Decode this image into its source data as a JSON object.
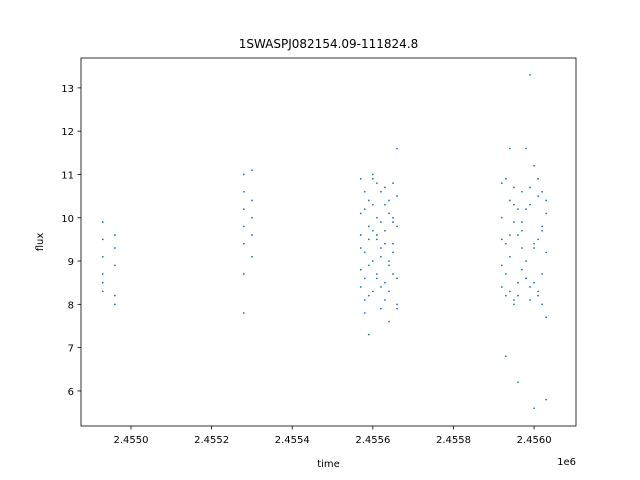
{
  "chart_data": {
    "type": "scatter",
    "title": "1SWASPJ082154.09-111824.8",
    "x_label": "time",
    "y_label": "flux",
    "x_offset_label": "1e6",
    "color": "#1f77b4",
    "xlim": [
      2.454876,
      2.456104
    ],
    "ylim": [
      5.19,
      13.69
    ],
    "xticks": [
      {
        "value": 2.455,
        "label": "2.4550"
      },
      {
        "value": 2.4552,
        "label": "2.4552"
      },
      {
        "value": 2.4554,
        "label": "2.4554"
      },
      {
        "value": 2.4556,
        "label": "2.4556"
      },
      {
        "value": 2.4558,
        "label": "2.4558"
      },
      {
        "value": 2.456,
        "label": "2.4560"
      }
    ],
    "yticks": [
      6,
      7,
      8,
      9,
      10,
      11,
      12,
      13
    ],
    "x": [
      2.45493,
      2.45493,
      2.45493,
      2.45493,
      2.45493,
      2.45493,
      2.45496,
      2.45496,
      2.45496,
      2.45496,
      2.45496,
      2.45528,
      2.45528,
      2.45528,
      2.45528,
      2.45528,
      2.45528,
      2.45528,
      2.4553,
      2.4553,
      2.4553,
      2.4553,
      2.4553,
      2.45557,
      2.45558,
      2.45559,
      2.4556,
      2.45561,
      2.45562,
      2.45563,
      2.45564,
      2.45565,
      2.45566,
      2.45557,
      2.45558,
      2.45559,
      2.4556,
      2.45561,
      2.45562,
      2.45563,
      2.45564,
      2.45565,
      2.45566,
      2.45557,
      2.45558,
      2.45559,
      2.4556,
      2.45561,
      2.45562,
      2.45563,
      2.45564,
      2.45565,
      2.45566,
      2.45557,
      2.45558,
      2.45559,
      2.4556,
      2.45561,
      2.45562,
      2.45563,
      2.45564,
      2.45565,
      2.45566,
      2.45557,
      2.45558,
      2.45559,
      2.4556,
      2.45561,
      2.45562,
      2.45563,
      2.45564,
      2.45565,
      2.45566,
      2.45557,
      2.45558,
      2.45559,
      2.4556,
      2.45561,
      2.45562,
      2.45563,
      2.45564,
      2.45565,
      2.45566,
      2.45592,
      2.45593,
      2.45594,
      2.45595,
      2.45596,
      2.45597,
      2.45598,
      2.45599,
      2.456,
      2.45601,
      2.45602,
      2.45603,
      2.45592,
      2.45593,
      2.45594,
      2.45595,
      2.45596,
      2.45597,
      2.45598,
      2.45599,
      2.456,
      2.45601,
      2.45602,
      2.45603,
      2.45592,
      2.45593,
      2.45594,
      2.45595,
      2.45596,
      2.45597,
      2.45598,
      2.45599,
      2.456,
      2.45601,
      2.45602,
      2.45603,
      2.45592,
      2.45593,
      2.45594,
      2.45595,
      2.45596,
      2.45597,
      2.45598,
      2.45599,
      2.456,
      2.45601,
      2.45602,
      2.45603,
      2.45592,
      2.45593,
      2.45594,
      2.45595,
      2.45596,
      2.45597,
      2.45598,
      2.45599,
      2.456,
      2.45601,
      2.45602,
      2.45603
    ],
    "values": [
      9.9,
      9.5,
      9.1,
      8.7,
      8.5,
      8.3,
      9.6,
      9.3,
      8.9,
      8.2,
      8.0,
      11.0,
      10.6,
      10.2,
      9.8,
      9.4,
      8.7,
      7.8,
      11.1,
      10.4,
      10.0,
      9.6,
      9.1,
      10.9,
      8.1,
      9.5,
      10.3,
      8.6,
      9.9,
      10.7,
      8.3,
      9.2,
      10.5,
      8.4,
      10.2,
      8.9,
      9.7,
      10.8,
      7.9,
      9.4,
      10.1,
      8.7,
      9.8,
      9.6,
      10.6,
      8.2,
      9.0,
      10.0,
      9.3,
      8.5,
      10.4,
      9.9,
      8.0,
      8.8,
      9.2,
      10.4,
      8.3,
      9.6,
      10.6,
      8.1,
      9.0,
      10.8,
      8.6,
      10.1,
      7.8,
      9.8,
      10.9,
      8.7,
      9.1,
      10.3,
      8.9,
      9.4,
      7.9,
      9.3,
      8.6,
      7.3,
      11.0,
      9.5,
      8.4,
      9.7,
      7.6,
      10.0,
      11.6,
      10.8,
      8.2,
      9.6,
      10.3,
      8.5,
      9.9,
      11.6,
      8.1,
      9.4,
      10.5,
      8.7,
      10.1,
      8.4,
      10.9,
      9.1,
      8.0,
      10.2,
      9.7,
      8.6,
      10.7,
      9.3,
      8.3,
      9.8,
      10.4,
      9.5,
      8.7,
      11.6,
      9.9,
      8.2,
      10.6,
      9.0,
      10.3,
      8.5,
      10.9,
      8.0,
      9.2,
      10.0,
      9.4,
      8.3,
      10.7,
      9.6,
      8.8,
      10.2,
      8.4,
      11.2,
      9.5,
      10.6,
      7.7,
      8.9,
      6.8,
      10.4,
      8.1,
      6.2,
      9.3,
      8.6,
      13.3,
      5.6,
      8.2,
      9.7,
      5.8
    ]
  }
}
